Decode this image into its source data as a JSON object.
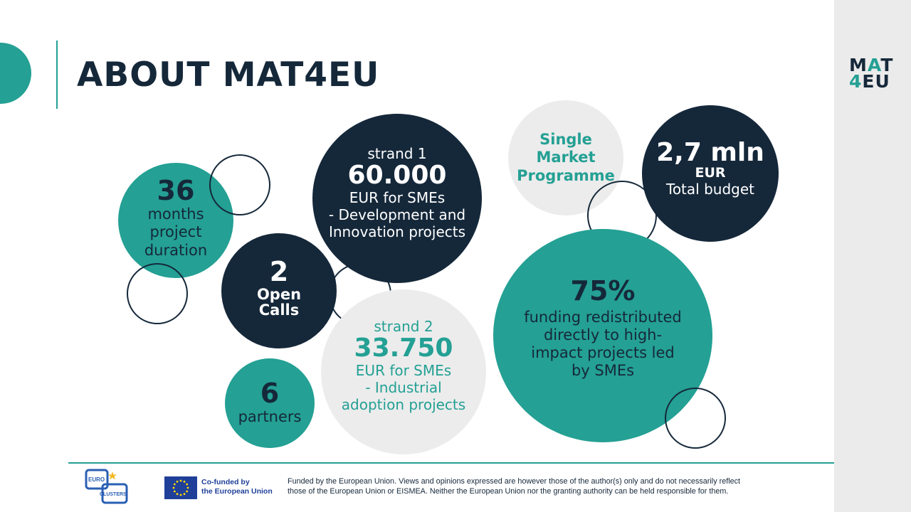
{
  "title": "ABOUT MAT4EU",
  "logo": {
    "line1_a": "M",
    "line1_b": "A",
    "line1_c": "T",
    "line2_a": "4",
    "line2_b": "EU"
  },
  "months": {
    "number": "36",
    "l1": "months",
    "l2": "project",
    "l3": "duration"
  },
  "strand1": {
    "label": "strand 1",
    "amount": "60.000",
    "l1": "EUR for SMEs",
    "l2": "- Development and",
    "l3": "Innovation projects"
  },
  "calls": {
    "number": "2",
    "l1": "Open",
    "l2": "Calls"
  },
  "strand2": {
    "label": "strand 2",
    "amount": "33.750",
    "l1": "EUR for SMEs",
    "l2": "- Industrial",
    "l3": "adoption projects"
  },
  "partners": {
    "number": "6",
    "label": "partners"
  },
  "programme": {
    "l1": "Single",
    "l2": "Market",
    "l3": "Programme"
  },
  "budget": {
    "amount": "2,7 mln",
    "currency": "EUR",
    "label": "Total budget"
  },
  "funding": {
    "percent": "75%",
    "l1": "funding redistributed",
    "l2": "directly to high-",
    "l3": "impact projects led",
    "l4": "by SMEs"
  },
  "footer": {
    "cofunded_l1": "Co-funded by",
    "cofunded_l2": "the European Union",
    "eu_clusters_l1": "EURO",
    "eu_clusters_l2": "CLUSTERS",
    "disclaimer_l1": "Funded by the European Union. Views and opinions expressed are however those of the author(s) only and do not necessarily reflect",
    "disclaimer_l2": "those of the European Union or EISMEA. Neither the European Union nor the granting authority can be held responsible for them."
  },
  "colors": {
    "teal": "#24a094",
    "navy": "#15283a",
    "grey": "#ececec",
    "eu_blue": "#1f3f99",
    "eu_yellow": "#ffdd00"
  }
}
